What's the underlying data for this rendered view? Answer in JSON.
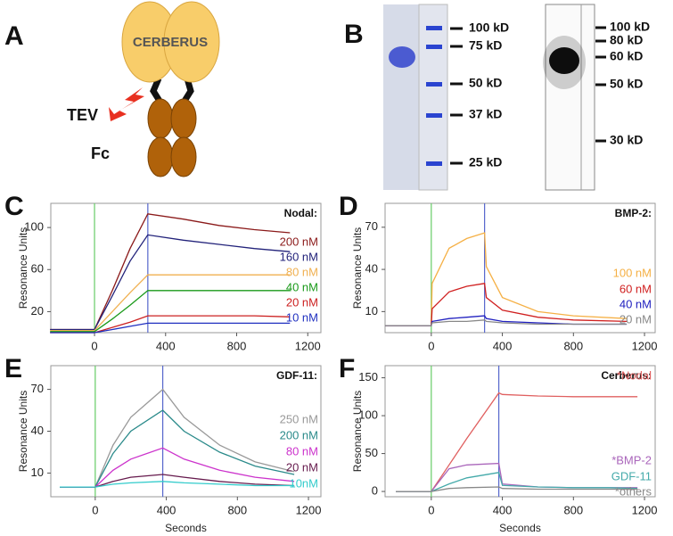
{
  "diagram": {
    "label": "A",
    "protein": "CERBERUS",
    "protease": "TEV",
    "fusion": "Fc"
  },
  "gel": {
    "label": "B",
    "markers_left": [
      "100 kD",
      "75 kD",
      "50 kD",
      "37 kD",
      "25 kD"
    ],
    "markers_right": [
      "100 kD",
      "80 kD",
      "60 kD",
      "50 kD",
      "30 kD"
    ]
  },
  "chart_data": [
    {
      "type": "line",
      "label": "C",
      "title": "Nodal:",
      "ylabel": "Resonance Units",
      "x": [
        -250,
        0,
        100,
        200,
        300,
        500,
        700,
        900,
        1100
      ],
      "xlim": [
        -246,
        1274
      ],
      "xticks": [
        0,
        400,
        800,
        1200
      ],
      "ylim": [
        0,
        123
      ],
      "yticks": [
        20,
        60,
        100
      ],
      "vlines": [
        {
          "value": 0,
          "color": "#66cc66"
        },
        {
          "value": 300,
          "color": "#5566cc"
        }
      ],
      "series": [
        {
          "name": "200 nM",
          "color": "#8b1a1a",
          "values": [
            3,
            3,
            40,
            80,
            113,
            108,
            102,
            98,
            95
          ]
        },
        {
          "name": "160 nM",
          "color": "#22227a",
          "values": [
            3,
            3,
            35,
            68,
            93,
            88,
            84,
            80,
            77
          ]
        },
        {
          "name": "80 nM",
          "color": "#f0b050",
          "values": [
            2,
            2,
            20,
            38,
            55,
            55,
            55,
            55,
            55
          ]
        },
        {
          "name": "40 nM",
          "color": "#1a9a1a",
          "values": [
            1,
            1,
            13,
            26,
            40,
            40,
            40,
            40,
            40
          ]
        },
        {
          "name": "20 nM",
          "color": "#cc2020",
          "values": [
            0,
            0,
            5,
            10,
            16,
            16,
            16,
            16,
            15
          ]
        },
        {
          "name": "10 nM",
          "color": "#2030c0",
          "values": [
            0,
            0,
            3,
            6,
            9,
            9,
            9,
            9,
            9
          ]
        }
      ]
    },
    {
      "type": "line",
      "label": "D",
      "title": "BMP-2:",
      "ylabel": "Resonance Units",
      "x": [
        -260,
        0,
        5,
        100,
        200,
        300,
        310,
        400,
        600,
        800,
        1100
      ],
      "xlim": [
        -260,
        1260
      ],
      "xticks": [
        0,
        400,
        800,
        1200
      ],
      "ylim": [
        -5,
        87
      ],
      "yticks": [
        10,
        40,
        70
      ],
      "vlines": [
        {
          "value": 0,
          "color": "#66cc66"
        },
        {
          "value": 300,
          "color": "#5566cc"
        }
      ],
      "series": [
        {
          "name": "100 nM",
          "color": "#f5b045",
          "values": [
            0,
            0,
            30,
            55,
            62,
            66,
            42,
            20,
            10,
            7,
            5
          ]
        },
        {
          "name": "60 nM",
          "color": "#d02020",
          "values": [
            0,
            0,
            12,
            24,
            28,
            30,
            20,
            11,
            6,
            4,
            3
          ]
        },
        {
          "name": "40 nM",
          "color": "#2020c0",
          "values": [
            0,
            0,
            3,
            5,
            6,
            7,
            5,
            3,
            2,
            1,
            1
          ]
        },
        {
          "name": "20 nM",
          "color": "#888888",
          "values": [
            0,
            0,
            2,
            3,
            3,
            4,
            3,
            2,
            1,
            1,
            1
          ]
        }
      ]
    },
    {
      "type": "line",
      "label": "E",
      "title": "GDF-11:",
      "ylabel": "Resonance Units",
      "xlabel": "Seconds",
      "x": [
        -200,
        0,
        100,
        200,
        380,
        500,
        700,
        900,
        1120
      ],
      "xlim": [
        -250,
        1270
      ],
      "xticks": [
        0,
        400,
        800,
        1200
      ],
      "ylim": [
        -7,
        87
      ],
      "yticks": [
        10,
        40,
        70
      ],
      "vlines": [
        {
          "value": 0,
          "color": "#66cc66"
        },
        {
          "value": 380,
          "color": "#5566cc"
        }
      ],
      "series": [
        {
          "name": "250 nM",
          "color": "#999999",
          "values": [
            0,
            0,
            30,
            50,
            70,
            50,
            30,
            18,
            11
          ]
        },
        {
          "name": "200 nM",
          "color": "#2a8a8a",
          "values": [
            0,
            0,
            24,
            40,
            55,
            40,
            25,
            15,
            9
          ]
        },
        {
          "name": "80 nM",
          "color": "#cc33cc",
          "values": [
            0,
            0,
            12,
            20,
            28,
            20,
            12,
            7,
            4
          ]
        },
        {
          "name": "20 nM",
          "color": "#661a4d",
          "values": [
            0,
            0,
            4,
            7,
            9,
            7,
            4,
            2,
            1
          ]
        },
        {
          "name": "10nM",
          "color": "#33cccc",
          "values": [
            0,
            0,
            2,
            3,
            4,
            3,
            2,
            1,
            1
          ]
        }
      ]
    },
    {
      "type": "line",
      "label": "F",
      "title": "Cerberus:",
      "ylabel": "Resonance Units",
      "xlabel": "Seconds",
      "x": [
        -200,
        0,
        100,
        200,
        380,
        400,
        600,
        800,
        1000,
        1160
      ],
      "xlim": [
        -260,
        1260
      ],
      "xticks": [
        0,
        400,
        800,
        1200
      ],
      "ylim": [
        -7,
        166
      ],
      "yticks": [
        0,
        50,
        100,
        150
      ],
      "vlines": [
        {
          "value": 0,
          "color": "#66cc66"
        },
        {
          "value": 380,
          "color": "#5566cc"
        }
      ],
      "series": [
        {
          "name": "*Nodal",
          "color": "#e06060",
          "values": [
            0,
            0,
            35,
            70,
            130,
            128,
            126,
            125,
            125,
            125
          ]
        },
        {
          "name": "*BMP-2",
          "color": "#aa66bb",
          "values": [
            0,
            0,
            30,
            35,
            37,
            10,
            6,
            5,
            5,
            5
          ]
        },
        {
          "name": "GDF-11",
          "color": "#44aaaa",
          "values": [
            0,
            0,
            10,
            18,
            25,
            8,
            6,
            5,
            5,
            4
          ]
        },
        {
          "name": "*others",
          "color": "#888888",
          "values": [
            0,
            0,
            4,
            5,
            6,
            4,
            3,
            3,
            3,
            3
          ]
        }
      ]
    }
  ]
}
